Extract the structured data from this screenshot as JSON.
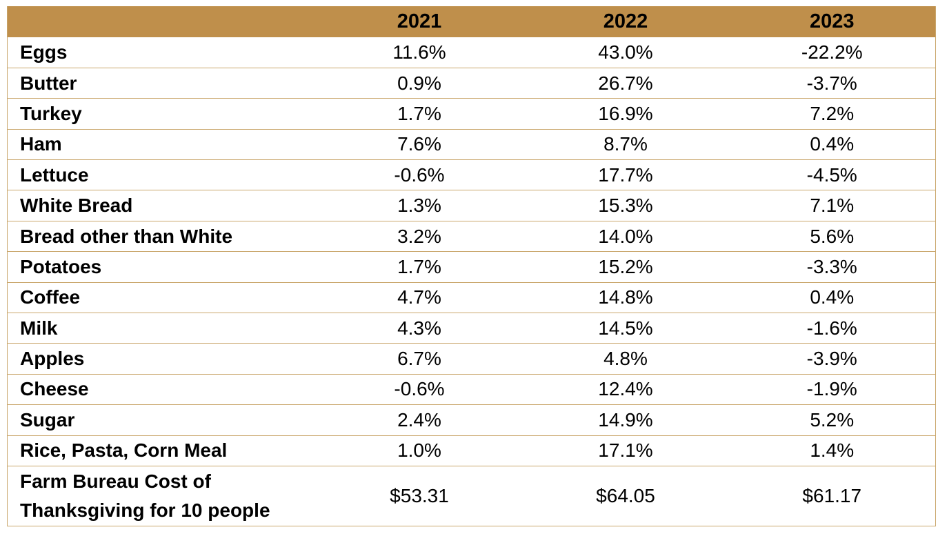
{
  "colors": {
    "header_bg": "#bf8f4b",
    "rule": "#c9a66b"
  },
  "table": {
    "headers": [
      "",
      "2021",
      "2022",
      "2023"
    ],
    "rows": [
      [
        "Eggs",
        "11.6%",
        "43.0%",
        "-22.2%"
      ],
      [
        "Butter",
        "0.9%",
        "26.7%",
        "-3.7%"
      ],
      [
        "Turkey",
        "1.7%",
        "16.9%",
        "7.2%"
      ],
      [
        "Ham",
        "7.6%",
        "8.7%",
        "0.4%"
      ],
      [
        "Lettuce",
        "-0.6%",
        "17.7%",
        "-4.5%"
      ],
      [
        "White Bread",
        "1.3%",
        "15.3%",
        "7.1%"
      ],
      [
        "Bread other than White",
        "3.2%",
        "14.0%",
        "5.6%"
      ],
      [
        "Potatoes",
        "1.7%",
        "15.2%",
        "-3.3%"
      ],
      [
        "Coffee",
        "4.7%",
        "14.8%",
        "0.4%"
      ],
      [
        "Milk",
        "4.3%",
        "14.5%",
        "-1.6%"
      ],
      [
        "Apples",
        "6.7%",
        "4.8%",
        "-3.9%"
      ],
      [
        "Cheese",
        "-0.6%",
        "12.4%",
        "-1.9%"
      ],
      [
        "Sugar",
        "2.4%",
        "14.9%",
        "5.2%"
      ],
      [
        "Rice, Pasta, Corn Meal",
        "1.0%",
        "17.1%",
        "1.4%"
      ],
      [
        "Farm Bureau Cost of Thanksgiving for 10 people",
        "$53.31",
        "$64.05",
        "$61.17"
      ]
    ]
  }
}
